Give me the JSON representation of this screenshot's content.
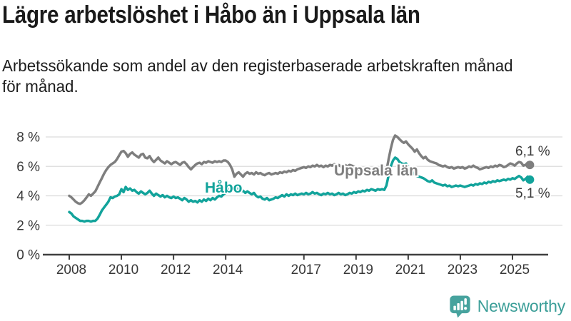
{
  "header": {
    "title": "Lägre arbetslöshet i Håbo än i Uppsala län",
    "subtitle_lines": [
      "Arbetssökande som andel av den registerbaserade arbetskraften månad",
      "för månad."
    ]
  },
  "footer": {
    "brand": "Newsworthy",
    "logo_icon": "bar-chart-speech-bubble-icon",
    "brand_color": "#3b9e98",
    "icon_color": "#47a39e"
  },
  "chart_data": {
    "type": "line",
    "unit": "%",
    "frequency": "monthly",
    "x_start": "2008-01",
    "x_end": "2025-09",
    "grid": true,
    "y_range": [
      0,
      8
    ],
    "y_ticks": [
      {
        "value": 0,
        "label": "0 %"
      },
      {
        "value": 2,
        "label": "2 %"
      },
      {
        "value": 4,
        "label": "4 %"
      },
      {
        "value": 6,
        "label": "6 %"
      },
      {
        "value": 8,
        "label": "8 %"
      }
    ],
    "x_tick_years": [
      2008,
      2010,
      2012,
      2014,
      2017,
      2019,
      2021,
      2023,
      2025
    ],
    "series": [
      {
        "name": "Uppsala län",
        "color": "#7e7e7e",
        "end_label": "6,1 %",
        "end_value": 6.1,
        "values": [
          4.0,
          3.9,
          3.75,
          3.6,
          3.5,
          3.45,
          3.55,
          3.7,
          3.9,
          4.1,
          4.0,
          4.15,
          4.3,
          4.6,
          4.9,
          5.2,
          5.5,
          5.75,
          5.95,
          6.1,
          6.2,
          6.3,
          6.5,
          6.75,
          7.0,
          7.05,
          6.9,
          6.65,
          6.85,
          6.95,
          6.8,
          6.7,
          6.6,
          6.8,
          6.85,
          6.6,
          6.55,
          6.7,
          6.45,
          6.3,
          6.45,
          6.6,
          6.4,
          6.3,
          6.2,
          6.35,
          6.25,
          6.15,
          6.25,
          6.3,
          6.2,
          6.1,
          6.25,
          6.3,
          6.15,
          5.95,
          5.8,
          5.95,
          6.1,
          6.2,
          6.25,
          6.15,
          6.3,
          6.25,
          6.35,
          6.3,
          6.25,
          6.35,
          6.3,
          6.35,
          6.3,
          6.4,
          6.4,
          6.3,
          6.1,
          5.8,
          5.3,
          5.5,
          5.6,
          5.45,
          5.3,
          5.5,
          5.6,
          5.5,
          5.55,
          5.45,
          5.6,
          5.5,
          5.55,
          5.45,
          5.4,
          5.5,
          5.55,
          5.45,
          5.5,
          5.55,
          5.5,
          5.6,
          5.55,
          5.65,
          5.6,
          5.7,
          5.65,
          5.75,
          5.7,
          5.8,
          5.85,
          5.9,
          5.95,
          5.9,
          6.0,
          5.95,
          6.05,
          6.0,
          6.1,
          6.0,
          6.05,
          5.95,
          6.05,
          6.0,
          6.1,
          6.05,
          6.15,
          6.05,
          6.1,
          6.0,
          6.05,
          6.1,
          6.0,
          6.1,
          6.05,
          6.0,
          5.9,
          5.8,
          5.7,
          5.6,
          5.5,
          5.45,
          5.5,
          5.55,
          5.45,
          5.5,
          5.55,
          5.5,
          5.5,
          5.45,
          5.7,
          6.5,
          7.2,
          7.8,
          8.1,
          8.0,
          7.85,
          7.7,
          7.6,
          7.7,
          7.5,
          7.35,
          7.2,
          7.0,
          7.15,
          6.9,
          6.7,
          6.55,
          6.65,
          6.45,
          6.35,
          6.3,
          6.25,
          6.2,
          6.1,
          6.05,
          6.0,
          6.05,
          5.95,
          5.9,
          5.95,
          5.85,
          5.9,
          5.95,
          5.9,
          5.95,
          5.85,
          5.9,
          6.0,
          5.95,
          6.05,
          5.95,
          5.9,
          5.8,
          5.85,
          5.9,
          5.95,
          5.9,
          6.0,
          5.95,
          6.05,
          6.0,
          6.1,
          6.05,
          5.95,
          6.0,
          6.1,
          6.2,
          6.15,
          6.05,
          6.2,
          6.3,
          6.25,
          6.05,
          6.1,
          6.25,
          6.1
        ]
      },
      {
        "name": "Håbo",
        "color": "#12a39b",
        "end_label": "5,1 %",
        "end_value": 5.1,
        "values": [
          2.9,
          2.8,
          2.6,
          2.5,
          2.4,
          2.3,
          2.3,
          2.25,
          2.3,
          2.3,
          2.25,
          2.3,
          2.3,
          2.45,
          2.7,
          3.0,
          3.2,
          3.4,
          3.6,
          3.9,
          3.85,
          3.95,
          4.0,
          4.1,
          4.45,
          4.25,
          4.6,
          4.4,
          4.5,
          4.35,
          4.4,
          4.25,
          4.15,
          4.3,
          4.2,
          4.1,
          4.2,
          4.35,
          4.15,
          4.0,
          4.15,
          4.05,
          3.95,
          4.05,
          3.9,
          4.0,
          3.9,
          3.85,
          3.95,
          3.85,
          3.9,
          3.8,
          3.7,
          3.85,
          3.75,
          3.6,
          3.7,
          3.6,
          3.65,
          3.55,
          3.7,
          3.6,
          3.75,
          3.65,
          3.8,
          3.7,
          3.85,
          3.75,
          3.9,
          4.0,
          3.95,
          4.1,
          4.2,
          4.35,
          4.5,
          4.65,
          4.45,
          4.55,
          4.4,
          4.3,
          4.35,
          4.2,
          4.3,
          4.2,
          4.1,
          4.2,
          4.0,
          3.9,
          3.95,
          3.8,
          3.75,
          3.85,
          3.7,
          3.75,
          3.8,
          3.9,
          3.85,
          3.95,
          4.05,
          3.95,
          4.1,
          4.0,
          4.1,
          4.05,
          4.15,
          4.05,
          4.1,
          4.15,
          4.1,
          4.2,
          4.1,
          4.15,
          4.25,
          4.15,
          4.2,
          4.1,
          4.05,
          4.15,
          4.1,
          4.2,
          4.1,
          4.15,
          4.05,
          4.1,
          4.2,
          4.1,
          4.15,
          4.05,
          4.1,
          4.2,
          4.15,
          4.25,
          4.2,
          4.3,
          4.25,
          4.35,
          4.3,
          4.4,
          4.35,
          4.45,
          4.4,
          4.35,
          4.45,
          4.4,
          4.45,
          4.4,
          4.7,
          5.4,
          6.0,
          6.4,
          6.6,
          6.5,
          6.3,
          6.2,
          6.15,
          6.2,
          6.0,
          5.8,
          5.6,
          5.45,
          5.35,
          5.3,
          5.25,
          5.2,
          5.1,
          5.0,
          4.95,
          5.05,
          4.9,
          4.85,
          4.8,
          4.75,
          4.7,
          4.75,
          4.65,
          4.7,
          4.6,
          4.65,
          4.7,
          4.65,
          4.7,
          4.65,
          4.6,
          4.65,
          4.7,
          4.75,
          4.7,
          4.8,
          4.75,
          4.85,
          4.8,
          4.9,
          4.85,
          4.95,
          4.9,
          5.0,
          4.95,
          5.05,
          5.0,
          5.05,
          5.1,
          5.05,
          5.15,
          5.1,
          5.2,
          5.15,
          5.25,
          5.35,
          5.25,
          5.05,
          5.15,
          5.3,
          5.1
        ]
      }
    ]
  }
}
